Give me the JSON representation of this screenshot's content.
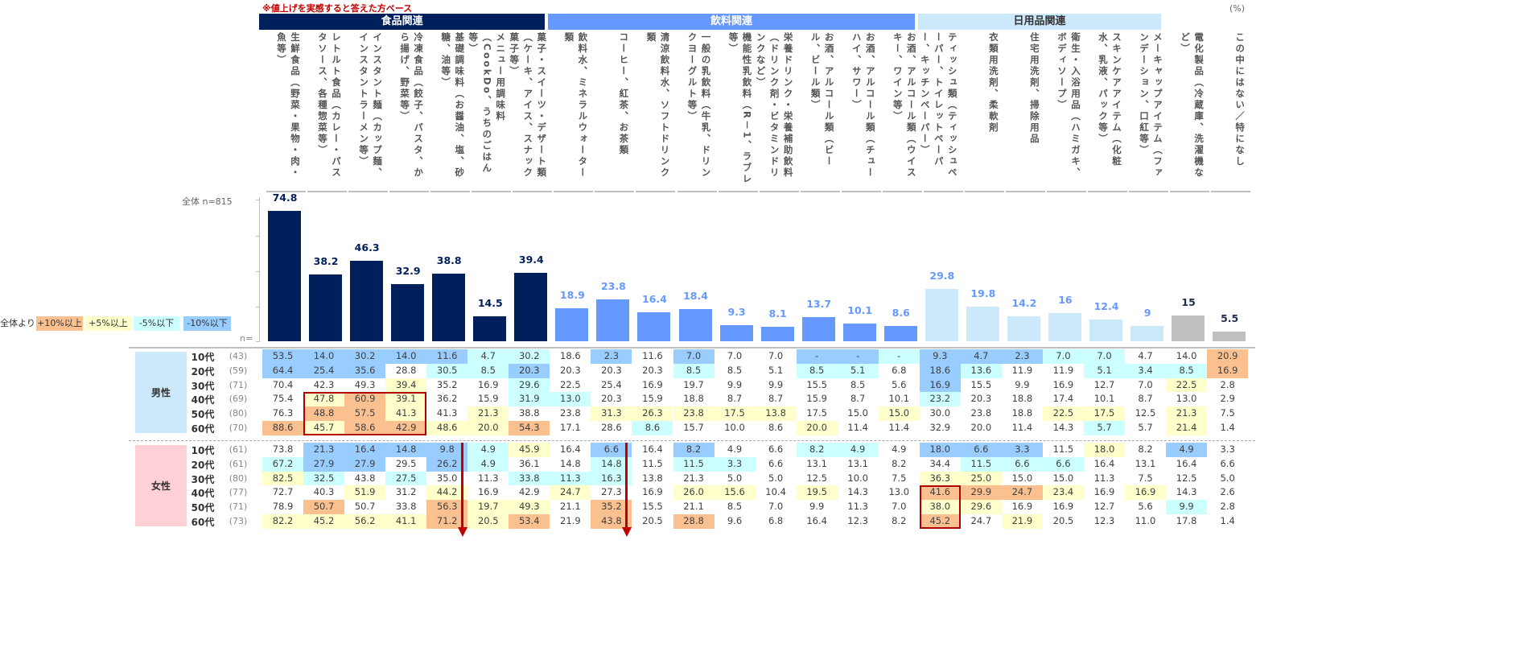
{
  "note": "※値上げを実感すると答えた方ベース",
  "unit": "(%)",
  "groups": [
    {
      "label": "食品関連",
      "color": "#00205b",
      "span": [
        0,
        6
      ]
    },
    {
      "label": "飲料関連",
      "color": "#6699ff",
      "span": [
        7,
        15
      ]
    },
    {
      "label": "日用品関連",
      "color": "#cce8fb",
      "span": [
        16,
        21
      ]
    }
  ],
  "legend": {
    "title": "全体より",
    "items": [
      {
        "label": "+10%以上",
        "color": "#fac090"
      },
      {
        "label": "+5%以上",
        "color": "#ffffcc"
      },
      {
        "label": "-5%以下",
        "color": "#ccffff"
      },
      {
        "label": "-10%以下",
        "color": "#99ccff"
      }
    ]
  },
  "overall_label": "全体 n=815",
  "n_label": "n=",
  "chart_data": {
    "type": "bar",
    "categories": [
      "生鮮食品（野菜・果物・肉・魚等）",
      "レトルト食品（カレー・パスタソース、各種惣菜等）",
      "インスタント麺（カップ麺、インスタントラーメン等）",
      "冷凍食品（餃子、パスタ、から揚げ、野菜等）",
      "基礎調味料（お醤油、塩、砂糖、油等）",
      "メニュー用調味料（CookDo、うちのごはん等）",
      "菓子・スイーツ・デザート類（ケーキ、アイス、スナック菓子等）",
      "飲料水、ミネラルウォーター類",
      "コーヒー、紅茶、お茶類",
      "清涼飲料水、ソフトドリンク類",
      "一般の乳飲料（牛乳、ドリンクヨーグルト等）",
      "機能性乳飲料（R－1、ラブレ等）",
      "栄養ドリンク・栄養補助飲料（ドリンク剤・ビタミンドリンクなど）",
      "お酒、アルコール類（ビール、ビール類）",
      "お酒、アルコール類（チューハイ、サワー）",
      "お酒、アルコール類（ウイスキー、ワイン等）",
      "ティッシュ類（ティッシュペーパー、トイレットペーパー、キッチンペーパー）",
      "衣類用洗剤、柔軟剤",
      "住宅用洗剤、掃除用品",
      "衛生・入浴用品（ハミガキ、ボディソープ）",
      "スキンケアアイテム（化粧水、乳液、パック等）",
      "メーキャップアイテム（ファンデーション、口紅等）",
      "電化製品（冷蔵庫、洗濯機など）",
      "この中にはない／特になし"
    ],
    "values": [
      74.8,
      38.2,
      46.3,
      32.9,
      38.8,
      14.5,
      39.4,
      18.9,
      23.8,
      16.4,
      18.4,
      9.3,
      8.1,
      13.7,
      10.1,
      8.6,
      29.8,
      19.8,
      14.2,
      16.0,
      12.4,
      9.0,
      15.0,
      5.5
    ],
    "bar_colors": [
      "#00205b",
      "#00205b",
      "#00205b",
      "#00205b",
      "#00205b",
      "#00205b",
      "#00205b",
      "#6699ff",
      "#6699ff",
      "#6699ff",
      "#6699ff",
      "#6699ff",
      "#6699ff",
      "#6699ff",
      "#6699ff",
      "#6699ff",
      "#cce8fb",
      "#cce8fb",
      "#cce8fb",
      "#cce8fb",
      "#cce8fb",
      "#cce8fb",
      "#bfbfbf",
      "#bfbfbf"
    ],
    "label_colors": [
      "#00205b",
      "#00205b",
      "#00205b",
      "#00205b",
      "#00205b",
      "#00205b",
      "#00205b",
      "#6699ff",
      "#6699ff",
      "#6699ff",
      "#6699ff",
      "#6699ff",
      "#6699ff",
      "#6699ff",
      "#6699ff",
      "#6699ff",
      "#6699ff",
      "#6699ff",
      "#6699ff",
      "#6699ff",
      "#6699ff",
      "#6699ff",
      "#1f2d50",
      "#1f2d50"
    ],
    "ylim": [
      0,
      80
    ],
    "table": [
      {
        "group": "男性",
        "rows": [
          {
            "age": "10代",
            "n": "(43)",
            "values": [
              "53.5",
              "14.0",
              "30.2",
              "14.0",
              "11.6",
              "4.7",
              "30.2",
              "18.6",
              "2.3",
              "11.6",
              "7.0",
              "7.0",
              "7.0",
              "-",
              "-",
              "-",
              "9.3",
              "4.7",
              "2.3",
              "7.0",
              "7.0",
              "4.7",
              "14.0",
              "20.9"
            ]
          },
          {
            "age": "20代",
            "n": "(59)",
            "values": [
              "64.4",
              "25.4",
              "35.6",
              "28.8",
              "30.5",
              "8.5",
              "20.3",
              "20.3",
              "20.3",
              "20.3",
              "8.5",
              "8.5",
              "5.1",
              "8.5",
              "5.1",
              "6.8",
              "18.6",
              "13.6",
              "11.9",
              "11.9",
              "5.1",
              "3.4",
              "8.5",
              "16.9"
            ]
          },
          {
            "age": "30代",
            "n": "(71)",
            "values": [
              "70.4",
              "42.3",
              "49.3",
              "39.4",
              "35.2",
              "16.9",
              "29.6",
              "22.5",
              "25.4",
              "16.9",
              "19.7",
              "9.9",
              "9.9",
              "15.5",
              "8.5",
              "5.6",
              "16.9",
              "15.5",
              "9.9",
              "16.9",
              "12.7",
              "7.0",
              "22.5",
              "2.8"
            ]
          },
          {
            "age": "40代",
            "n": "(69)",
            "values": [
              "75.4",
              "47.8",
              "60.9",
              "39.1",
              "36.2",
              "15.9",
              "31.9",
              "13.0",
              "20.3",
              "15.9",
              "18.8",
              "8.7",
              "8.7",
              "15.9",
              "8.7",
              "10.1",
              "23.2",
              "20.3",
              "18.8",
              "17.4",
              "10.1",
              "8.7",
              "13.0",
              "2.9"
            ]
          },
          {
            "age": "50代",
            "n": "(80)",
            "values": [
              "76.3",
              "48.8",
              "57.5",
              "41.3",
              "41.3",
              "21.3",
              "38.8",
              "23.8",
              "31.3",
              "26.3",
              "23.8",
              "17.5",
              "13.8",
              "17.5",
              "15.0",
              "15.0",
              "30.0",
              "23.8",
              "18.8",
              "22.5",
              "17.5",
              "12.5",
              "21.3",
              "7.5"
            ]
          },
          {
            "age": "60代",
            "n": "(70)",
            "values": [
              "88.6",
              "45.7",
              "58.6",
              "42.9",
              "48.6",
              "20.0",
              "54.3",
              "17.1",
              "28.6",
              "8.6",
              "15.7",
              "10.0",
              "8.6",
              "20.0",
              "11.4",
              "11.4",
              "32.9",
              "20.0",
              "11.4",
              "14.3",
              "5.7",
              "5.7",
              "21.4",
              "1.4"
            ]
          }
        ]
      },
      {
        "group": "女性",
        "rows": [
          {
            "age": "10代",
            "n": "(61)",
            "values": [
              "73.8",
              "21.3",
              "16.4",
              "14.8",
              "9.8",
              "4.9",
              "45.9",
              "16.4",
              "6.6",
              "16.4",
              "8.2",
              "4.9",
              "6.6",
              "8.2",
              "4.9",
              "4.9",
              "18.0",
              "6.6",
              "3.3",
              "11.5",
              "18.0",
              "8.2",
              "4.9",
              "3.3"
            ]
          },
          {
            "age": "20代",
            "n": "(61)",
            "values": [
              "67.2",
              "27.9",
              "27.9",
              "29.5",
              "26.2",
              "4.9",
              "36.1",
              "14.8",
              "14.8",
              "11.5",
              "11.5",
              "3.3",
              "6.6",
              "13.1",
              "13.1",
              "8.2",
              "34.4",
              "11.5",
              "6.6",
              "6.6",
              "16.4",
              "13.1",
              "16.4",
              "6.6"
            ]
          },
          {
            "age": "30代",
            "n": "(80)",
            "values": [
              "82.5",
              "32.5",
              "43.8",
              "27.5",
              "35.0",
              "11.3",
              "33.8",
              "11.3",
              "16.3",
              "13.8",
              "21.3",
              "5.0",
              "5.0",
              "12.5",
              "10.0",
              "7.5",
              "36.3",
              "25.0",
              "15.0",
              "15.0",
              "11.3",
              "7.5",
              "12.5",
              "5.0"
            ]
          },
          {
            "age": "40代",
            "n": "(77)",
            "values": [
              "72.7",
              "40.3",
              "51.9",
              "31.2",
              "44.2",
              "16.9",
              "42.9",
              "24.7",
              "27.3",
              "16.9",
              "26.0",
              "15.6",
              "10.4",
              "19.5",
              "14.3",
              "13.0",
              "41.6",
              "29.9",
              "24.7",
              "23.4",
              "16.9",
              "16.9",
              "14.3",
              "2.6"
            ]
          },
          {
            "age": "50代",
            "n": "(71)",
            "values": [
              "78.9",
              "50.7",
              "50.7",
              "33.8",
              "56.3",
              "19.7",
              "49.3",
              "21.1",
              "35.2",
              "15.5",
              "21.1",
              "8.5",
              "7.0",
              "9.9",
              "11.3",
              "7.0",
              "38.0",
              "29.6",
              "16.9",
              "16.9",
              "12.7",
              "5.6",
              "9.9",
              "2.8"
            ]
          },
          {
            "age": "60代",
            "n": "(73)",
            "values": [
              "82.2",
              "45.2",
              "56.2",
              "41.1",
              "71.2",
              "20.5",
              "53.4",
              "21.9",
              "43.8",
              "20.5",
              "28.8",
              "9.6",
              "6.8",
              "16.4",
              "12.3",
              "8.2",
              "45.2",
              "24.7",
              "21.9",
              "20.5",
              "12.3",
              "11.0",
              "17.8",
              "1.4"
            ]
          }
        ]
      }
    ],
    "highlights": [
      {
        "group": 0,
        "rows": [
          3,
          5
        ],
        "cols": [
          1,
          3
        ]
      },
      {
        "group": 1,
        "rows": [
          3,
          5
        ],
        "cols": [
          16,
          16
        ]
      }
    ],
    "trend_arrows": [
      {
        "group": 1,
        "col": 4
      },
      {
        "group": 1,
        "col": 8
      }
    ]
  }
}
